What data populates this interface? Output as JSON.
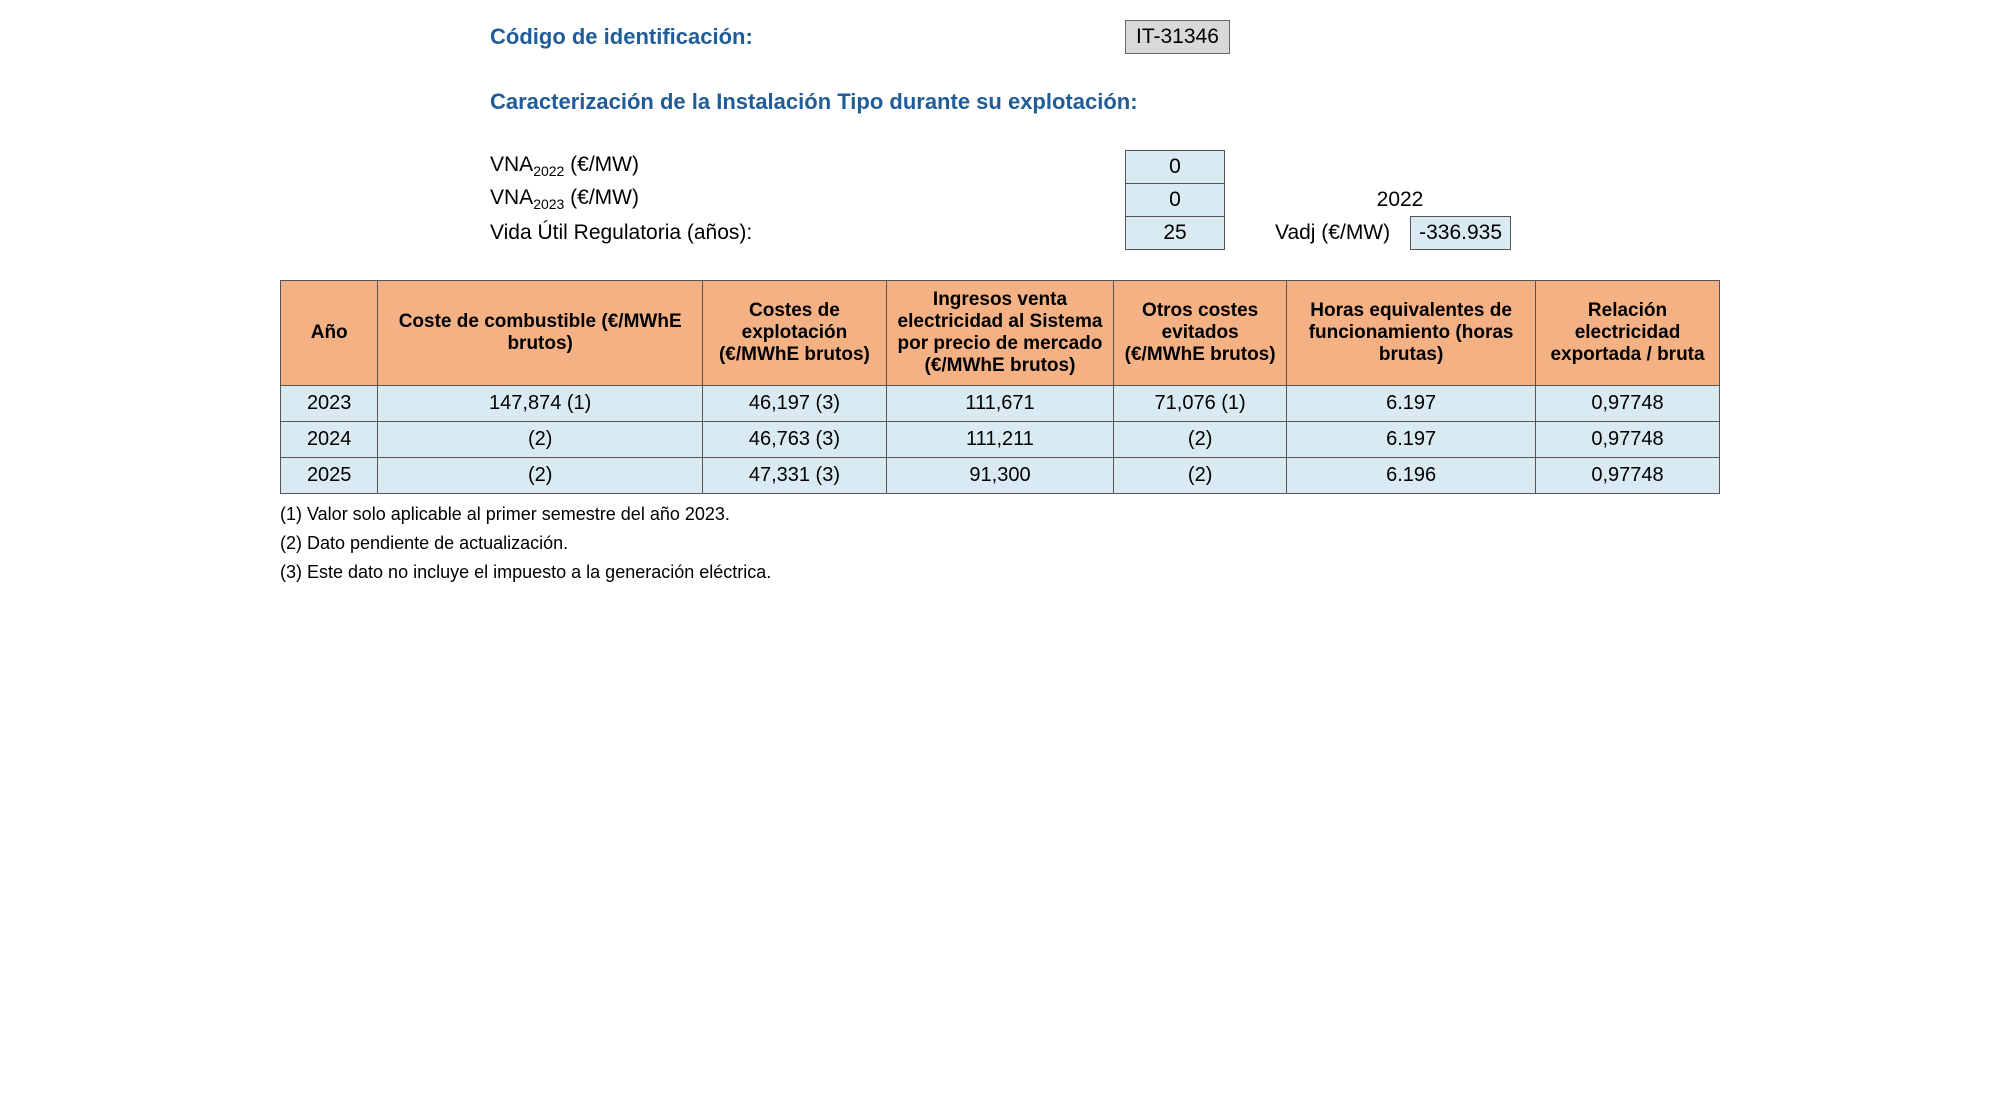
{
  "header": {
    "id_label": "Código de identificación:",
    "id_value": "IT-31346",
    "char_label": "Caracterización de la Instalación Tipo durante su explotación:"
  },
  "params": {
    "vna2022": {
      "label_prefix": "VNA",
      "label_sub": "2022",
      "label_suffix": " (€/MW)",
      "value": "0"
    },
    "vna2023": {
      "label_prefix": "VNA",
      "label_sub": "2023",
      "label_suffix": " (€/MW)",
      "value": "0"
    },
    "vida_util": {
      "label": "Vida Útil Regulatoria (años):",
      "value": "25"
    },
    "year_col": "2022",
    "vadj": {
      "label": "Vadj (€/MW)",
      "value": "-336.935"
    }
  },
  "table": {
    "columns": [
      "Año",
      "Coste de combustible (€/MWhE brutos)",
      "Costes de explotación (€/MWhE brutos)",
      "Ingresos venta electricidad al Sistema por precio de mercado (€/MWhE brutos)",
      "Otros costes evitados (€/MWhE brutos)",
      "Horas equivalentes de funcionamiento (horas brutas)",
      "Relación electricidad exportada / bruta"
    ],
    "col_widths": [
      "90px",
      "300px",
      "170px",
      "210px",
      "160px",
      "230px",
      "170px"
    ],
    "rows": [
      [
        "2023",
        "147,874 (1)",
        "46,197 (3)",
        "111,671",
        "71,076 (1)",
        "6.197",
        "0,97748"
      ],
      [
        "2024",
        "(2)",
        "46,763 (3)",
        "111,211",
        "(2)",
        "6.197",
        "0,97748"
      ],
      [
        "2025",
        "(2)",
        "47,331 (3)",
        "91,300",
        "(2)",
        "6.196",
        "0,97748"
      ]
    ],
    "header_bg": "#f4b183",
    "row_bg": "#d9eaf2",
    "border_color": "#555555"
  },
  "footnotes": [
    "(1) Valor solo aplicable al primer semestre del año 2023.",
    "(2) Dato pendiente de actualización.",
    "(3) Este dato no incluye el impuesto a la generación eléctrica."
  ]
}
